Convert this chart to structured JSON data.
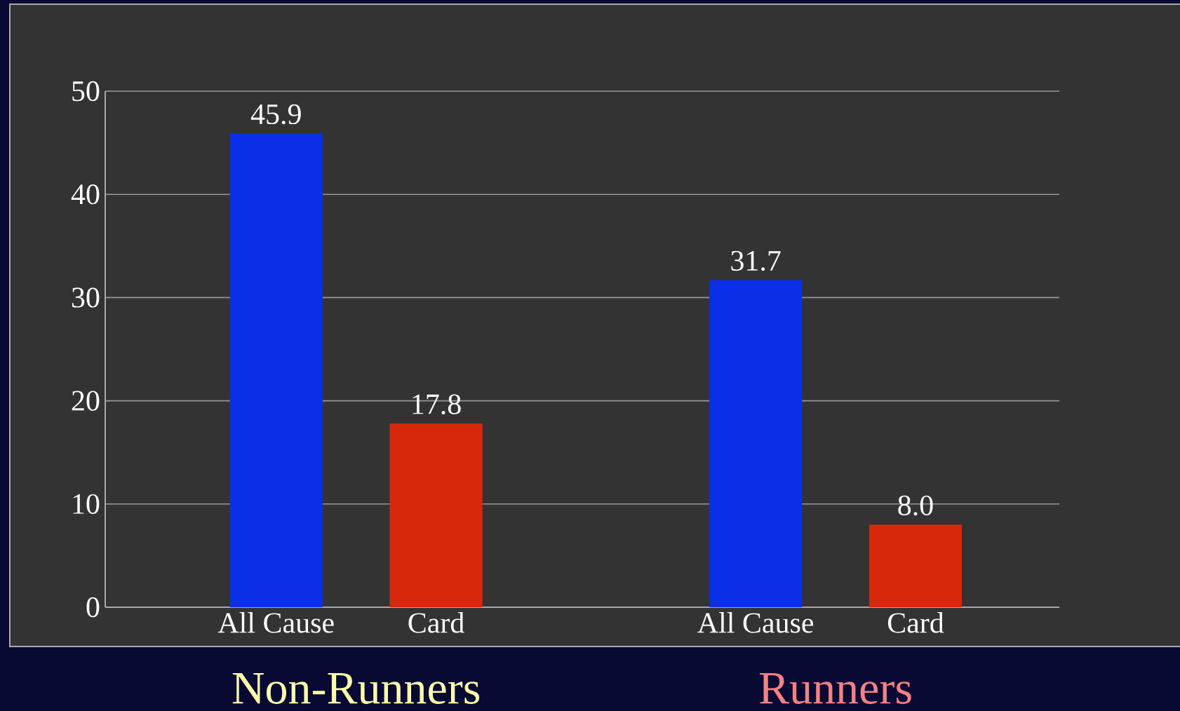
{
  "chart_data": {
    "type": "bar",
    "categories": [
      "All Cause",
      "Card",
      "All Cause",
      "Card"
    ],
    "values": [
      45.9,
      17.8,
      31.7,
      8.0
    ],
    "colors": [
      "#0b2fe6",
      "#d8280c",
      "#0b2fe6",
      "#d8280c"
    ],
    "value_labels": [
      "45.9",
      "17.8",
      "31.7",
      "8.0"
    ],
    "ylim": [
      0,
      50
    ],
    "yticks": [
      0,
      10,
      20,
      30,
      40,
      50
    ],
    "grid": "y",
    "annotations": [
      "Non-Runners",
      "Runners"
    ]
  }
}
